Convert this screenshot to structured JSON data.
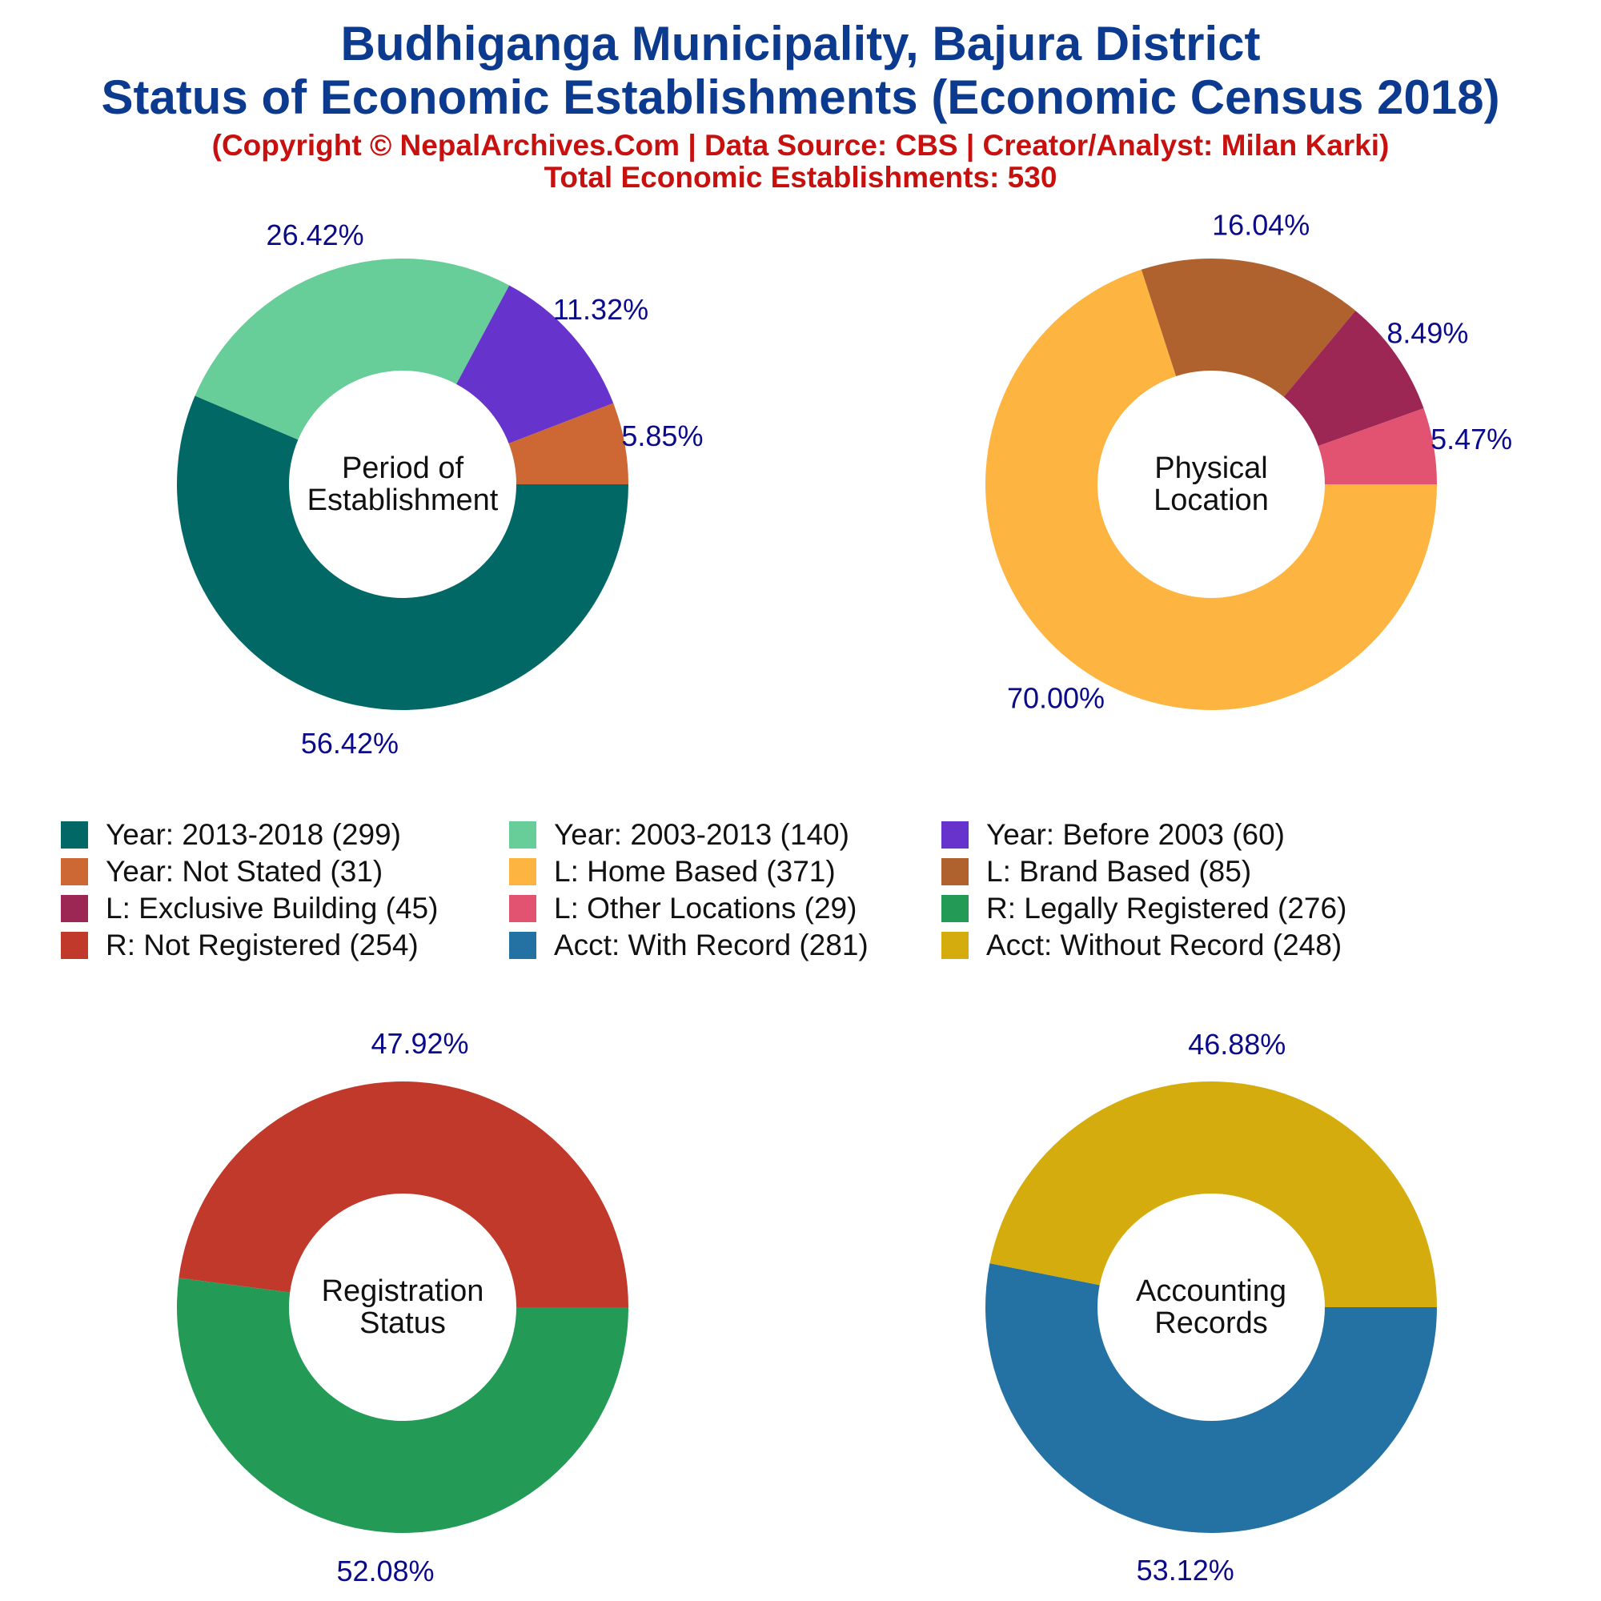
{
  "header": {
    "title_line1": "Budhiganga Municipality, Bajura District",
    "title_line2": "Status of Economic Establishments (Economic Census 2018)",
    "subtitle": "(Copyright © NepalArchives.Com | Data Source: CBS | Creator/Analyst: Milan Karki)",
    "total": "Total Economic Establishments: 530"
  },
  "colors": {
    "title": "#0b3a8f",
    "subtitle": "#c8100e",
    "pct_label": "#0a0a8a",
    "center_text": "#111111"
  },
  "legend": [
    {
      "label": "Year: 2013-2018 (299)",
      "color": "#026865"
    },
    {
      "label": "Year: 2003-2013 (140)",
      "color": "#67cd99"
    },
    {
      "label": "Year: Before 2003 (60)",
      "color": "#6733cd"
    },
    {
      "label": "Year: Not Stated (31)",
      "color": "#cd6733"
    },
    {
      "label": "L: Home Based (371)",
      "color": "#fdb440"
    },
    {
      "label": "L: Brand Based (85)",
      "color": "#b0622e"
    },
    {
      "label": "L: Exclusive Building (45)",
      "color": "#9c2755"
    },
    {
      "label": "L: Other Locations (29)",
      "color": "#e15371"
    },
    {
      "label": "R: Legally Registered (276)",
      "color": "#239b56"
    },
    {
      "label": "R: Not Registered (254)",
      "color": "#c0392b"
    },
    {
      "label": "Acct: With Record (281)",
      "color": "#2471a3"
    },
    {
      "label": "Acct: Without Record (248)",
      "color": "#d4ac0d"
    }
  ],
  "chart_data": [
    {
      "type": "pie",
      "center_label": [
        "Period of",
        "Establishment"
      ],
      "categories": [
        "Year: 2013-2018",
        "Year: 2003-2013",
        "Year: Before 2003",
        "Year: Not Stated"
      ],
      "values": [
        299,
        140,
        60,
        31
      ],
      "labels": [
        "56.42%",
        "26.42%",
        "11.32%",
        "5.85%"
      ],
      "colors": [
        "#026865",
        "#67cd99",
        "#6733cd",
        "#cd6733"
      ]
    },
    {
      "type": "pie",
      "center_label": [
        "Physical",
        "Location"
      ],
      "categories": [
        "L: Home Based",
        "L: Brand Based",
        "L: Exclusive Building",
        "L: Other Locations"
      ],
      "values": [
        371,
        85,
        45,
        29
      ],
      "labels": [
        "70.00%",
        "16.04%",
        "8.49%",
        "5.47%"
      ],
      "colors": [
        "#fdb440",
        "#b0622e",
        "#9c2755",
        "#e15371"
      ]
    },
    {
      "type": "pie",
      "center_label": [
        "Registration",
        "Status"
      ],
      "categories": [
        "R: Legally Registered",
        "R: Not Registered"
      ],
      "values": [
        276,
        254
      ],
      "labels": [
        "52.08%",
        "47.92%"
      ],
      "colors": [
        "#239b56",
        "#c0392b"
      ]
    },
    {
      "type": "pie",
      "center_label": [
        "Accounting",
        "Records"
      ],
      "categories": [
        "Acct: With Record",
        "Acct: Without Record"
      ],
      "values": [
        281,
        248
      ],
      "labels": [
        "53.12%",
        "46.88%"
      ],
      "colors": [
        "#2471a3",
        "#d4ac0d"
      ]
    }
  ]
}
